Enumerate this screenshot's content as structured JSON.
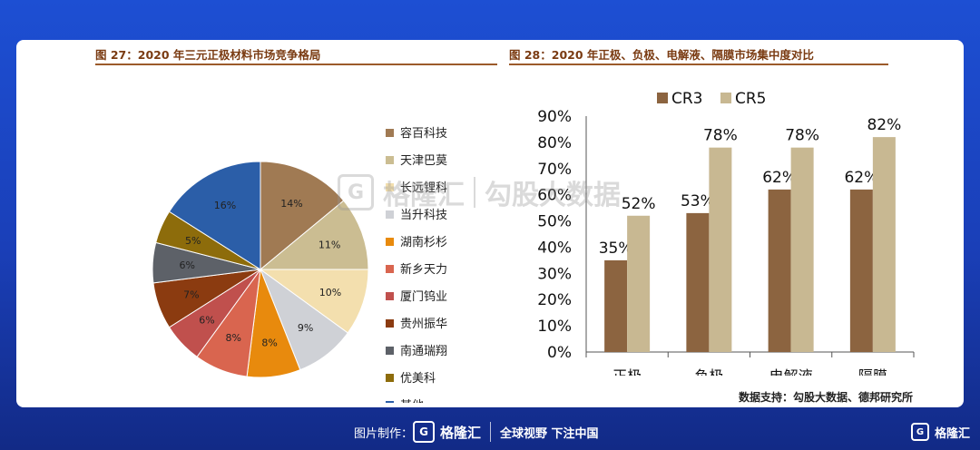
{
  "left_title": "图 27：2020 年三元正极材料市场竞争格局",
  "right_title": "图 28：2020 年正极、负极、电解液、隔膜市场集中度对比",
  "source_note": "数据支持：勾股大数据、德邦研究所",
  "watermark": {
    "brand": "格隆汇",
    "text": "勾股大数据",
    "icon": "G"
  },
  "footer": {
    "made_by": "图片制作：",
    "brand": "格隆汇",
    "slogan": "全球视野 下注中国",
    "corner_brand": "格隆汇",
    "icon": "G"
  },
  "chart_data": [
    {
      "type": "pie",
      "categories": [
        "容百科技",
        "天津巴莫",
        "长远锂科",
        "当升科技",
        "湖南杉杉",
        "新乡天力",
        "厦门钨业",
        "贵州振华",
        "南通瑞翔",
        "优美科",
        "其他"
      ],
      "values": [
        14,
        11,
        10,
        9,
        8,
        8,
        6,
        7,
        6,
        5,
        16
      ],
      "labels": [
        "14%",
        "11%",
        "10%",
        "9%",
        "8%",
        "8%",
        "6%",
        "7%",
        "6%",
        "5%",
        "16%"
      ],
      "colors": [
        "#a07a53",
        "#cbbd92",
        "#f3dfae",
        "#cfd1d6",
        "#e88a0d",
        "#d9654f",
        "#c0504d",
        "#8b3b10",
        "#5d6168",
        "#8d6c0b",
        "#2b5ea8"
      ],
      "legend_position": "right"
    },
    {
      "type": "bar",
      "categories": [
        "正极",
        "负极",
        "电解液",
        "隔膜"
      ],
      "series": [
        {
          "name": "CR3",
          "values": [
            35,
            53,
            62,
            62
          ],
          "labels": [
            "35%",
            "53%",
            "62%",
            "62%"
          ],
          "color": "#8c6440"
        },
        {
          "name": "CR5",
          "values": [
            52,
            78,
            78,
            82
          ],
          "labels": [
            "52%",
            "78%",
            "78%",
            "82%"
          ],
          "color": "#c8b892"
        }
      ],
      "ylim": [
        0,
        90
      ],
      "yticks": [
        "0%",
        "10%",
        "20%",
        "30%",
        "40%",
        "50%",
        "60%",
        "70%",
        "80%",
        "90%"
      ],
      "grid": false,
      "legend_position": "top"
    }
  ]
}
